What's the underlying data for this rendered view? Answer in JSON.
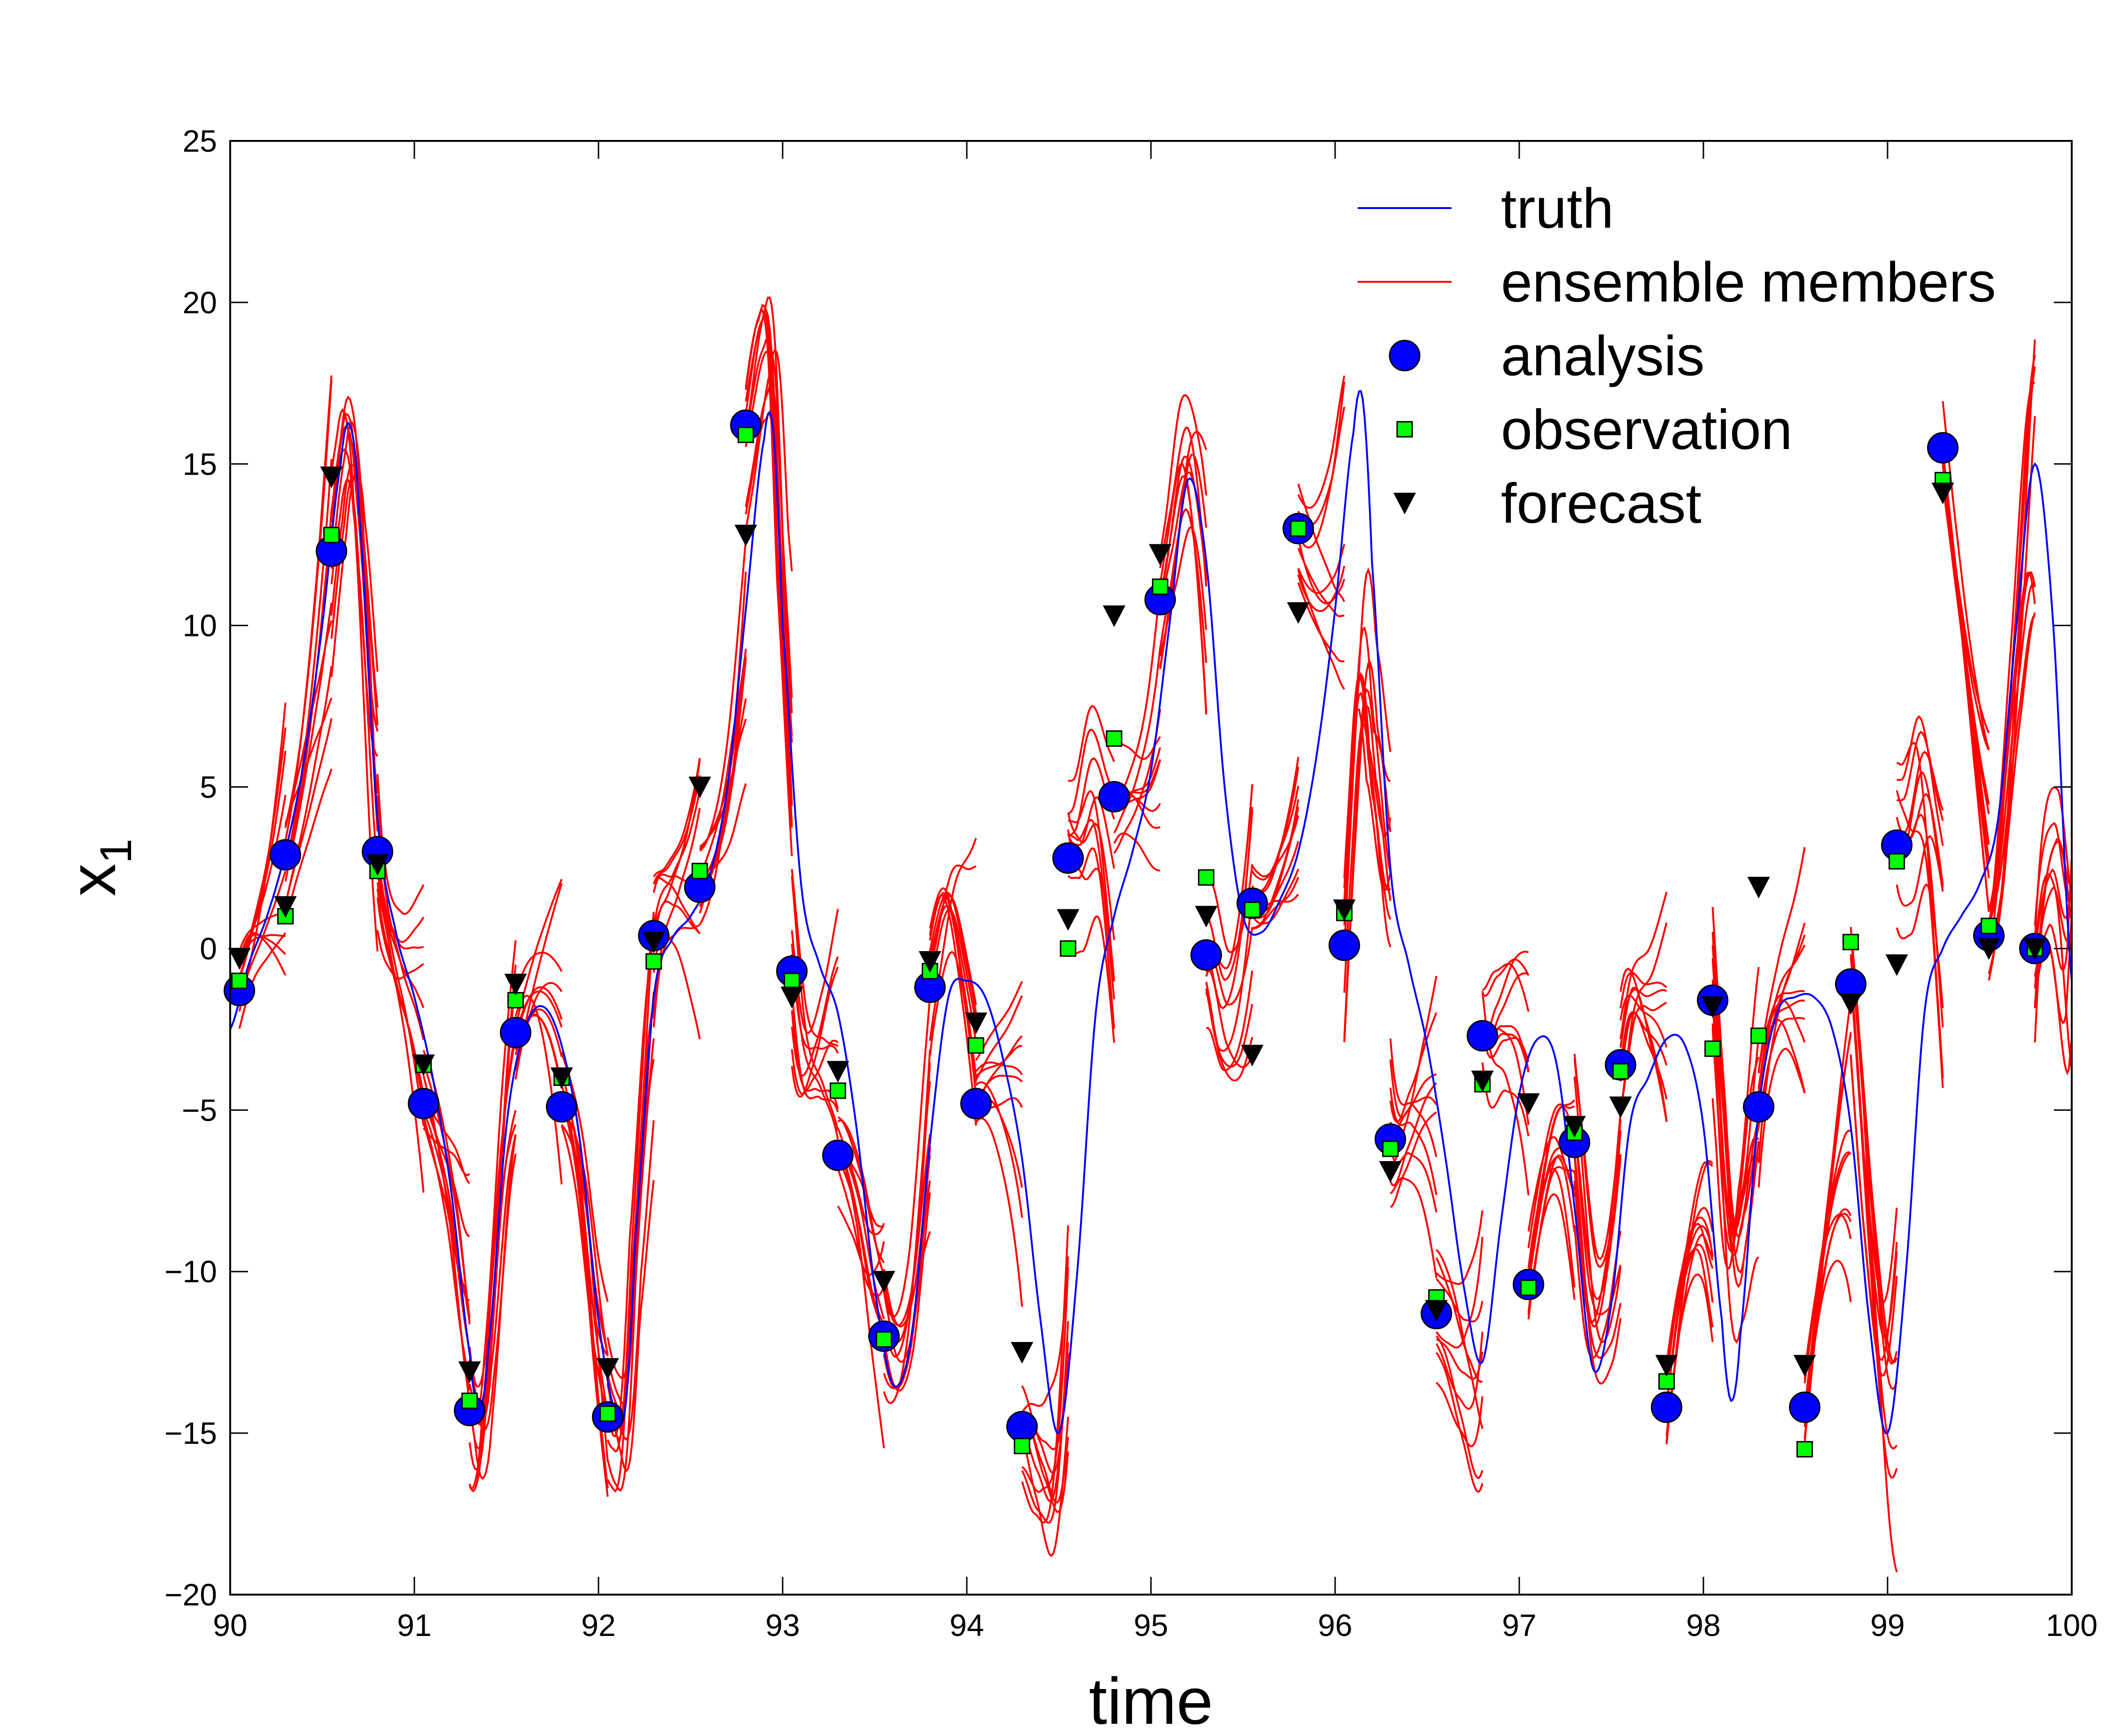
{
  "chart_data": {
    "type": "line",
    "xlabel": "time",
    "ylabel": "x",
    "ylabel_subscript": "1",
    "xlim": [
      90,
      100
    ],
    "ylim": [
      -20,
      25
    ],
    "xticks": [
      90,
      91,
      92,
      93,
      94,
      95,
      96,
      97,
      98,
      99,
      100
    ],
    "yticks": [
      -20,
      -15,
      -10,
      -5,
      0,
      5,
      10,
      15,
      20,
      25
    ],
    "xtick_labels": [
      "90",
      "91",
      "92",
      "93",
      "94",
      "95",
      "96",
      "97",
      "98",
      "99",
      "100"
    ],
    "ytick_labels": [
      "−20",
      "−15",
      "−10",
      "−5",
      "0",
      "5",
      "10",
      "15",
      "20",
      "25"
    ],
    "grid": false,
    "legend_position": "top-right",
    "legend": [
      {
        "label": "truth",
        "marker": "line",
        "color": "#0000ff"
      },
      {
        "label": "ensemble members",
        "marker": "line",
        "color": "#ff0000"
      },
      {
        "label": "analysis",
        "marker": "circle",
        "color": "#0000ff"
      },
      {
        "label": "observation",
        "marker": "square",
        "color": "#00ff00"
      },
      {
        "label": "forecast",
        "marker": "triangle-down",
        "color": "#000000"
      }
    ],
    "ensemble_count": 10,
    "analysis_times": [
      90.05,
      90.3,
      90.55,
      90.8,
      91.05,
      91.3,
      91.55,
      91.8,
      92.05,
      92.3,
      92.55,
      92.8,
      93.05,
      93.3,
      93.55,
      93.8,
      94.05,
      94.3,
      94.55,
      94.8,
      95.05,
      95.3,
      95.55,
      95.8,
      96.05,
      96.3,
      96.55,
      96.8,
      97.05,
      97.3,
      97.55,
      97.8,
      98.05,
      98.3,
      98.55,
      98.8,
      99.05,
      99.3,
      99.55,
      99.8
    ],
    "series": [
      {
        "name": "truth",
        "x": [
          90.0,
          90.1,
          90.2,
          90.3,
          90.4,
          90.5,
          90.6,
          90.65,
          90.7,
          90.8,
          90.9,
          91.0,
          91.1,
          91.2,
          91.3,
          91.35,
          91.4,
          91.5,
          91.6,
          91.7,
          91.8,
          91.9,
          92.0,
          92.1,
          92.15,
          92.2,
          92.3,
          92.4,
          92.5,
          92.6,
          92.7,
          92.8,
          92.9,
          92.95,
          93.0,
          93.1,
          93.2,
          93.3,
          93.4,
          93.5,
          93.6,
          93.7,
          93.8,
          93.9,
          94.0,
          94.1,
          94.2,
          94.3,
          94.4,
          94.5,
          94.6,
          94.7,
          94.8,
          94.9,
          95.0,
          95.1,
          95.2,
          95.3,
          95.4,
          95.5,
          95.6,
          95.7,
          95.8,
          95.9,
          96.0,
          96.1,
          96.15,
          96.2,
          96.3,
          96.4,
          96.5,
          96.6,
          96.7,
          96.8,
          96.9,
          97.0,
          97.1,
          97.2,
          97.3,
          97.4,
          97.5,
          97.6,
          97.7,
          97.8,
          97.9,
          98.0,
          98.1,
          98.15,
          98.2,
          98.3,
          98.4,
          98.5,
          98.6,
          98.7,
          98.8,
          98.9,
          99.0,
          99.1,
          99.2,
          99.3,
          99.4,
          99.5,
          99.6,
          99.7,
          99.8,
          99.9,
          100.0
        ],
        "y": [
          -2.5,
          -0.5,
          1.0,
          3.0,
          5.8,
          10.0,
          15.0,
          16.2,
          13.5,
          4.0,
          0.5,
          -1.5,
          -4.0,
          -7.5,
          -12.5,
          -14.2,
          -12.5,
          -5.5,
          -2.5,
          -1.8,
          -3.0,
          -6.0,
          -11.5,
          -14.5,
          -14.0,
          -9.0,
          -1.5,
          0.3,
          1.0,
          2.2,
          5.0,
          10.5,
          15.8,
          16.0,
          10.0,
          2.0,
          -0.5,
          -2.0,
          -5.5,
          -10.5,
          -13.5,
          -12.0,
          -6.0,
          -1.5,
          -1.0,
          -1.5,
          -3.5,
          -6.5,
          -11.5,
          -15.0,
          -10.0,
          -2.0,
          1.0,
          3.0,
          5.5,
          10.0,
          14.5,
          12.0,
          5.0,
          1.0,
          0.5,
          1.5,
          3.0,
          6.0,
          10.5,
          16.0,
          17.0,
          12.0,
          2.5,
          -0.5,
          -3.0,
          -6.5,
          -10.5,
          -12.8,
          -8.5,
          -4.5,
          -2.8,
          -3.5,
          -8.0,
          -13.0,
          -11.0,
          -5.5,
          -4.0,
          -2.8,
          -3.0,
          -5.5,
          -11.5,
          -14.0,
          -12.0,
          -5.0,
          -2.0,
          -1.5,
          -1.5,
          -2.5,
          -5.5,
          -11.5,
          -15.0,
          -10.0,
          -2.0,
          0.0,
          1.0,
          2.0,
          4.0,
          10.0,
          15.0,
          10.0,
          -1.0
        ]
      },
      {
        "name": "analysis",
        "x": [
          90.05,
          90.3,
          90.55,
          90.8,
          91.05,
          91.3,
          91.55,
          91.8,
          92.05,
          92.3,
          92.55,
          92.8,
          93.05,
          93.3,
          93.55,
          93.8,
          94.05,
          94.3,
          94.55,
          94.8,
          95.05,
          95.3,
          95.55,
          95.8,
          96.05,
          96.3,
          96.55,
          96.8,
          97.05,
          97.3,
          97.55,
          97.8,
          98.05,
          98.3,
          98.55,
          98.8,
          99.05,
          99.3,
          99.55,
          99.8
        ],
        "y": [
          -1.3,
          2.9,
          12.3,
          3.0,
          -4.8,
          -14.3,
          -2.6,
          -4.9,
          -14.5,
          0.4,
          1.9,
          16.2,
          -0.7,
          -6.4,
          -12.0,
          -1.2,
          -4.8,
          -14.8,
          2.8,
          4.7,
          10.8,
          -0.2,
          1.4,
          13.0,
          0.1,
          -5.9,
          -11.3,
          -2.7,
          -10.4,
          -6.0,
          -3.6,
          -14.2,
          -1.6,
          -4.9,
          -14.2,
          -1.1,
          3.2,
          15.5,
          0.4,
          0.0
        ]
      },
      {
        "name": "observation",
        "x": [
          90.05,
          90.3,
          90.55,
          90.8,
          91.05,
          91.3,
          91.55,
          91.8,
          92.05,
          92.3,
          92.55,
          92.8,
          93.05,
          93.3,
          93.55,
          93.8,
          94.05,
          94.3,
          94.55,
          94.8,
          95.05,
          95.3,
          95.55,
          95.8,
          96.05,
          96.3,
          96.55,
          96.8,
          97.05,
          97.3,
          97.55,
          97.8,
          98.05,
          98.3,
          98.55,
          98.8,
          99.05,
          99.3,
          99.55,
          99.8
        ],
        "y": [
          -1.0,
          1.0,
          12.8,
          2.4,
          -3.6,
          -14.0,
          -1.6,
          -4.0,
          -14.4,
          -0.4,
          2.4,
          15.9,
          -1.0,
          -4.4,
          -12.1,
          -0.7,
          -3.0,
          -15.4,
          0.0,
          6.5,
          11.2,
          2.2,
          1.2,
          13.0,
          1.1,
          -6.2,
          -10.8,
          -4.2,
          -10.5,
          -5.7,
          -3.8,
          -13.4,
          -3.1,
          -2.7,
          -15.5,
          0.2,
          2.7,
          14.5,
          0.7,
          0.0
        ]
      },
      {
        "name": "forecast",
        "x": [
          90.05,
          90.3,
          90.55,
          90.8,
          91.05,
          91.3,
          91.55,
          91.8,
          92.05,
          92.3,
          92.55,
          92.8,
          93.05,
          93.3,
          93.55,
          93.8,
          94.05,
          94.3,
          94.55,
          94.8,
          95.05,
          95.3,
          95.55,
          95.8,
          96.05,
          96.3,
          96.55,
          96.8,
          97.05,
          97.3,
          97.55,
          97.8,
          98.05,
          98.3,
          98.55,
          98.8,
          99.05,
          99.3,
          99.55,
          99.8
        ],
        "y": [
          -0.3,
          1.3,
          14.6,
          2.6,
          -3.6,
          -13.1,
          -1.1,
          -4.0,
          -13.0,
          0.2,
          5.0,
          12.8,
          -1.5,
          -3.8,
          -10.3,
          -0.4,
          -2.3,
          -12.5,
          0.9,
          10.3,
          12.2,
          1.0,
          -3.3,
          10.4,
          1.2,
          -6.9,
          -11.2,
          -4.1,
          -4.8,
          -5.5,
          -4.9,
          -12.9,
          -1.8,
          1.9,
          -12.9,
          -1.7,
          -0.5,
          14.1,
          0.0,
          0.0
        ]
      }
    ]
  }
}
